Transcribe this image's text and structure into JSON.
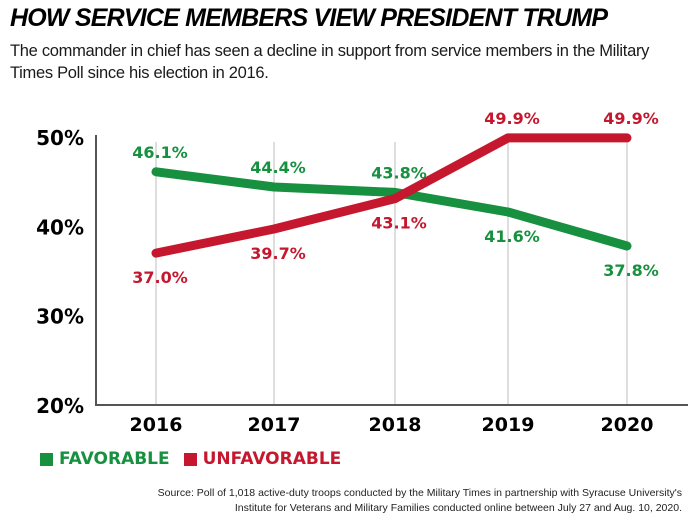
{
  "header": {
    "title": "HOW SERVICE MEMBERS VIEW PRESIDENT TRUMP",
    "subtitle": "The commander in chief has seen a decline in support from service members in the Military Times Poll since his election in 2016."
  },
  "colors": {
    "favorable": "#17903f",
    "unfavorable": "#c5182f",
    "axis": "#555555",
    "gridline": "#d4d4d4"
  },
  "chart_data": {
    "type": "line",
    "title": "HOW SERVICE MEMBERS VIEW PRESIDENT TRUMP",
    "xlabel": "",
    "ylabel": "",
    "x": [
      "2016",
      "2017",
      "2018",
      "2019",
      "2020"
    ],
    "ylim": [
      20,
      50
    ],
    "yticks": [
      20,
      30,
      40,
      50
    ],
    "ytick_labels": [
      "20%",
      "30%",
      "40%",
      "50%"
    ],
    "grid": "vertical",
    "legend_position": "bottom-left",
    "series": [
      {
        "name": "FAVORABLE",
        "color": "#17903f",
        "values": [
          46.1,
          44.4,
          43.8,
          41.6,
          37.8
        ],
        "labels": [
          "46.1%",
          "44.4%",
          "43.8%",
          "41.6%",
          "37.8%"
        ],
        "label_side": [
          "above",
          "above",
          "above",
          "below",
          "below"
        ]
      },
      {
        "name": "UNFAVORABLE",
        "color": "#c5182f",
        "values": [
          37.0,
          39.7,
          43.1,
          49.9,
          49.9
        ],
        "labels": [
          "37.0%",
          "39.7%",
          "43.1%",
          "49.9%",
          "49.9%"
        ],
        "label_side": [
          "below",
          "below",
          "below",
          "above",
          "above"
        ]
      }
    ]
  },
  "legend": [
    {
      "label": "FAVORABLE",
      "color": "#17903f"
    },
    {
      "label": "UNFAVORABLE",
      "color": "#c5182f"
    }
  ],
  "source": "Source: Poll of 1,018 active-duty troops conducted by the Military Times in partnership with Syracuse University's Institute for Veterans and Military Families conducted online between July 27 and Aug. 10, 2020."
}
